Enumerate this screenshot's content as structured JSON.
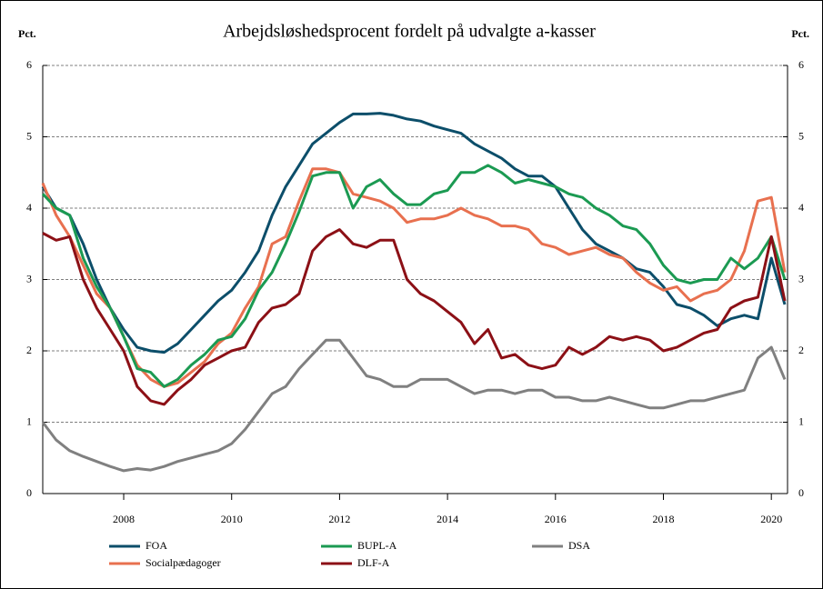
{
  "chart_data": {
    "type": "line",
    "title": "Arbejdsløshedsprocent fordelt på udvalgte a-kasser",
    "ylabel": "Pct.",
    "y2label": "Pct.",
    "x": [
      2006.5,
      2006.75,
      2007,
      2007.25,
      2007.5,
      2007.75,
      2008,
      2008.25,
      2008.5,
      2008.75,
      2009,
      2009.25,
      2009.5,
      2009.75,
      2010,
      2010.25,
      2010.5,
      2010.75,
      2011,
      2011.25,
      2011.5,
      2011.75,
      2012,
      2012.25,
      2012.5,
      2012.75,
      2013,
      2013.25,
      2013.5,
      2013.75,
      2014,
      2014.25,
      2014.5,
      2014.75,
      2015,
      2015.25,
      2015.5,
      2015.75,
      2016,
      2016.25,
      2016.5,
      2016.75,
      2017,
      2017.25,
      2017.5,
      2017.75,
      2018,
      2018.25,
      2018.5,
      2018.75,
      2019,
      2019.25,
      2019.5,
      2019.75,
      2020,
      2020.25
    ],
    "xlim": [
      2006.5,
      2020.3
    ],
    "xticks": [
      2008,
      2010,
      2012,
      2014,
      2016,
      2018,
      2020
    ],
    "ylim": [
      0,
      6
    ],
    "yticks": [
      0,
      1,
      2,
      3,
      4,
      5,
      6
    ],
    "y2lim": [
      0,
      6
    ],
    "y2ticks": [
      0,
      1,
      2,
      3,
      4,
      5,
      6
    ],
    "grid": true,
    "legend": "bottom",
    "series": [
      {
        "name": "FOA",
        "color": "#0c4e6a",
        "values": [
          4.3,
          4.0,
          3.9,
          3.5,
          3.0,
          2.6,
          2.3,
          2.05,
          2.0,
          1.98,
          2.1,
          2.3,
          2.5,
          2.7,
          2.85,
          3.1,
          3.4,
          3.9,
          4.3,
          4.6,
          4.9,
          5.05,
          5.2,
          5.32,
          5.32,
          5.33,
          5.3,
          5.25,
          5.22,
          5.15,
          5.1,
          5.05,
          4.9,
          4.8,
          4.7,
          4.55,
          4.45,
          4.45,
          4.3,
          4.0,
          3.7,
          3.5,
          3.4,
          3.3,
          3.15,
          3.1,
          2.9,
          2.65,
          2.6,
          2.5,
          2.35,
          2.45,
          2.5,
          2.45,
          3.3,
          2.65
        ]
      },
      {
        "name": "Socialpædagoger",
        "color": "#e8704f",
        "values": [
          4.35,
          3.9,
          3.6,
          3.2,
          2.8,
          2.6,
          2.2,
          1.8,
          1.6,
          1.5,
          1.55,
          1.7,
          1.85,
          2.1,
          2.25,
          2.6,
          2.9,
          3.5,
          3.6,
          4.1,
          4.55,
          4.55,
          4.5,
          4.2,
          4.15,
          4.1,
          4.0,
          3.8,
          3.85,
          3.85,
          3.9,
          4.0,
          3.9,
          3.85,
          3.75,
          3.75,
          3.7,
          3.5,
          3.45,
          3.35,
          3.4,
          3.45,
          3.35,
          3.3,
          3.1,
          2.95,
          2.85,
          2.9,
          2.7,
          2.8,
          2.85,
          3.0,
          3.4,
          4.1,
          4.15,
          3.1
        ]
      },
      {
        "name": "BUPL-A",
        "color": "#1b9a52",
        "values": [
          4.2,
          4.0,
          3.9,
          3.3,
          2.9,
          2.6,
          2.2,
          1.75,
          1.7,
          1.5,
          1.6,
          1.8,
          1.95,
          2.15,
          2.2,
          2.45,
          2.85,
          3.1,
          3.5,
          3.95,
          4.45,
          4.5,
          4.5,
          4.0,
          4.3,
          4.4,
          4.2,
          4.05,
          4.05,
          4.2,
          4.25,
          4.5,
          4.5,
          4.6,
          4.5,
          4.35,
          4.4,
          4.35,
          4.3,
          4.2,
          4.15,
          4.0,
          3.9,
          3.75,
          3.7,
          3.5,
          3.2,
          3.0,
          2.95,
          3.0,
          3.0,
          3.3,
          3.15,
          3.3,
          3.6,
          3.0
        ]
      },
      {
        "name": "DLF-A",
        "color": "#8c1016",
        "values": [
          3.65,
          3.55,
          3.6,
          3.0,
          2.6,
          2.3,
          2.0,
          1.5,
          1.3,
          1.25,
          1.45,
          1.6,
          1.8,
          1.9,
          2.0,
          2.05,
          2.4,
          2.6,
          2.65,
          2.8,
          3.4,
          3.6,
          3.7,
          3.5,
          3.45,
          3.55,
          3.55,
          3.0,
          2.8,
          2.7,
          2.55,
          2.4,
          2.1,
          2.3,
          1.9,
          1.95,
          1.8,
          1.75,
          1.8,
          2.05,
          1.95,
          2.05,
          2.2,
          2.15,
          2.2,
          2.15,
          2.0,
          2.05,
          2.15,
          2.25,
          2.3,
          2.6,
          2.7,
          2.75,
          3.6,
          2.7
        ]
      },
      {
        "name": "DSA",
        "color": "#808080",
        "values": [
          1.0,
          0.75,
          0.6,
          0.52,
          0.45,
          0.38,
          0.32,
          0.35,
          0.33,
          0.38,
          0.45,
          0.5,
          0.55,
          0.6,
          0.7,
          0.9,
          1.15,
          1.4,
          1.5,
          1.75,
          1.95,
          2.15,
          2.15,
          1.9,
          1.65,
          1.6,
          1.5,
          1.5,
          1.6,
          1.6,
          1.6,
          1.5,
          1.4,
          1.45,
          1.45,
          1.4,
          1.45,
          1.45,
          1.35,
          1.35,
          1.3,
          1.3,
          1.35,
          1.3,
          1.25,
          1.2,
          1.2,
          1.25,
          1.3,
          1.3,
          1.35,
          1.4,
          1.45,
          1.9,
          2.05,
          1.6
        ]
      }
    ]
  }
}
